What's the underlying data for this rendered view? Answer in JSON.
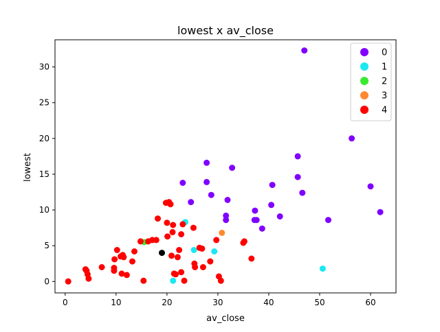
{
  "chart_data": {
    "type": "scatter",
    "title": "lowest x av_close",
    "xlabel": "av_close",
    "ylabel": "lowest",
    "xlim": [
      -2,
      65
    ],
    "ylim": [
      -1.6,
      33.8
    ],
    "xticks": [
      0,
      10,
      20,
      30,
      40,
      50,
      60
    ],
    "yticks": [
      0,
      5,
      10,
      15,
      20,
      25,
      30
    ],
    "grid": false,
    "legend_position": "top-right",
    "series": [
      {
        "name": "0",
        "color": "#8000ff",
        "points": [
          [
            47,
            32.3
          ],
          [
            56.3,
            20
          ],
          [
            45.7,
            17.5
          ],
          [
            27.8,
            16.6
          ],
          [
            32.8,
            15.9
          ],
          [
            45.7,
            14.6
          ],
          [
            23.1,
            13.8
          ],
          [
            27.8,
            13.9
          ],
          [
            40.7,
            13.5
          ],
          [
            60,
            13.3
          ],
          [
            46.6,
            12.4
          ],
          [
            28.7,
            12.1
          ],
          [
            31.9,
            11.4
          ],
          [
            24.7,
            11.1
          ],
          [
            40.5,
            10.7
          ],
          [
            37.3,
            9.9
          ],
          [
            61.9,
            9.7
          ],
          [
            31.6,
            9.2
          ],
          [
            42.2,
            9.1
          ],
          [
            37.2,
            8.6
          ],
          [
            37.6,
            8.6
          ],
          [
            31.6,
            8.6
          ],
          [
            51.7,
            8.6
          ],
          [
            38.7,
            7.4
          ]
        ]
      },
      {
        "name": "1",
        "color": "#1ae8f2",
        "points": [
          [
            23.6,
            8.3
          ],
          [
            25.3,
            4.4
          ],
          [
            29.3,
            4.2
          ],
          [
            50.6,
            1.8
          ],
          [
            21.2,
            0.1
          ]
        ]
      },
      {
        "name": "2",
        "color": "#39ea2f",
        "points": [
          [
            15.5,
            5.5
          ]
        ]
      },
      {
        "name": "3",
        "color": "#ff8a30",
        "points": [
          [
            30.8,
            6.8
          ]
        ]
      },
      {
        "name": "4",
        "color": "#ff0000",
        "points": [
          [
            0.6,
            0
          ],
          [
            4,
            1.7
          ],
          [
            4.2,
            1.5
          ],
          [
            4.4,
            1
          ],
          [
            4.6,
            0.4
          ],
          [
            7.2,
            2
          ],
          [
            9.6,
            1.5
          ],
          [
            9.6,
            1.9
          ],
          [
            9.7,
            3.1
          ],
          [
            10.2,
            4.4
          ],
          [
            10.9,
            3.5
          ],
          [
            11.3,
            3.7
          ],
          [
            11.1,
            1.1
          ],
          [
            11.5,
            3.4
          ],
          [
            12.1,
            0.9
          ],
          [
            13.2,
            2.8
          ],
          [
            13.6,
            4.2
          ],
          [
            14.8,
            5.6
          ],
          [
            15.4,
            0.1
          ],
          [
            16.3,
            5.6
          ],
          [
            17.1,
            5.8
          ],
          [
            17.9,
            5.8
          ],
          [
            18.2,
            8.8
          ],
          [
            19.8,
            11
          ],
          [
            20.4,
            11.1
          ],
          [
            20.7,
            10.8
          ],
          [
            20,
            8.2
          ],
          [
            20.1,
            6.3
          ],
          [
            20.9,
            3.6
          ],
          [
            21.1,
            6.9
          ],
          [
            21.2,
            7.9
          ],
          [
            21.4,
            1.1
          ],
          [
            21.7,
            1
          ],
          [
            22.1,
            3.4
          ],
          [
            22.4,
            4.4
          ],
          [
            22.8,
            6.6
          ],
          [
            22.8,
            1.3
          ],
          [
            23.1,
            8
          ],
          [
            23.4,
            0.1
          ],
          [
            25.2,
            7.5
          ],
          [
            25.4,
            2.5
          ],
          [
            25.5,
            2
          ],
          [
            26.4,
            4.7
          ],
          [
            26.9,
            4.6
          ],
          [
            27.1,
            2
          ],
          [
            28.5,
            2.8
          ],
          [
            29.7,
            5.8
          ],
          [
            30.2,
            0.7
          ],
          [
            30.6,
            0.1
          ],
          [
            35,
            5.4
          ],
          [
            35.2,
            5.6
          ],
          [
            36.6,
            3.2
          ]
        ]
      },
      {
        "name": "",
        "color": "#000000",
        "points": [
          [
            19,
            4
          ]
        ]
      }
    ]
  }
}
